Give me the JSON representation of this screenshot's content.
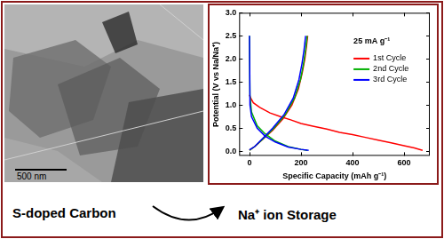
{
  "chart_data": {
    "type": "line",
    "x_label": "Specific Capacity (mAh g⁻¹)",
    "y_label": "Potential (V vs Na/Na⁺)",
    "annotation": "25 mA g⁻¹",
    "xlim": [
      -40,
      700
    ],
    "xticks": [
      0,
      200,
      400,
      600
    ],
    "ylim": [
      -0.1,
      3.0
    ],
    "yticks": [
      {
        "value": 0,
        "label": "0.0"
      },
      {
        "value": 0.5,
        "label": "0.5"
      },
      {
        "value": 1,
        "label": "1.0"
      },
      {
        "value": 1.5,
        "label": "1.5"
      },
      {
        "value": 2,
        "label": "2.0"
      },
      {
        "value": 2.5,
        "label": "2.5"
      },
      {
        "value": 3,
        "label": "3.0"
      }
    ],
    "grid": false,
    "legend": "right",
    "series": [
      {
        "name": "1st Cycle",
        "color": "#ff0000",
        "x": [
          0,
          5,
          15,
          40,
          80,
          120,
          160,
          200,
          250,
          300,
          350,
          400,
          450,
          500,
          550,
          600,
          640,
          672,
          null,
          0,
          20,
          50,
          90,
          130,
          165,
          190,
          205,
          215,
          222,
          226
        ],
        "values": [
          1.22,
          1.15,
          1.05,
          0.95,
          0.83,
          0.75,
          0.68,
          0.6,
          0.54,
          0.48,
          0.41,
          0.36,
          0.3,
          0.24,
          0.18,
          0.12,
          0.07,
          0.02,
          null,
          0.02,
          0.1,
          0.25,
          0.45,
          0.7,
          1.0,
          1.35,
          1.7,
          2.0,
          2.3,
          2.5
        ]
      },
      {
        "name": "2nd Cycle",
        "color": "#00b000",
        "x": [
          0,
          2,
          8,
          30,
          60,
          100,
          150,
          200,
          225,
          null,
          0,
          20,
          55,
          95,
          140,
          175,
          198,
          210,
          218,
          224
        ],
        "values": [
          2.5,
          1.2,
          0.85,
          0.55,
          0.38,
          0.22,
          0.1,
          0.04,
          0.02,
          null,
          0.02,
          0.1,
          0.28,
          0.5,
          0.8,
          1.15,
          1.55,
          1.9,
          2.2,
          2.5
        ]
      },
      {
        "name": "3rd Cycle",
        "color": "#0000ff",
        "x": [
          0,
          2,
          8,
          30,
          60,
          100,
          150,
          200,
          230,
          null,
          0,
          20,
          50,
          90,
          135,
          170,
          192,
          204,
          212,
          218
        ],
        "values": [
          2.5,
          1.0,
          0.75,
          0.5,
          0.33,
          0.2,
          0.09,
          0.04,
          0.02,
          null,
          0.03,
          0.1,
          0.27,
          0.5,
          0.8,
          1.15,
          1.55,
          1.9,
          2.2,
          2.5
        ]
      }
    ]
  },
  "image": {
    "scale_bar": "500 nm"
  },
  "captions": [
    "S-doped Carbon",
    "Na⁺ ion Storage"
  ]
}
